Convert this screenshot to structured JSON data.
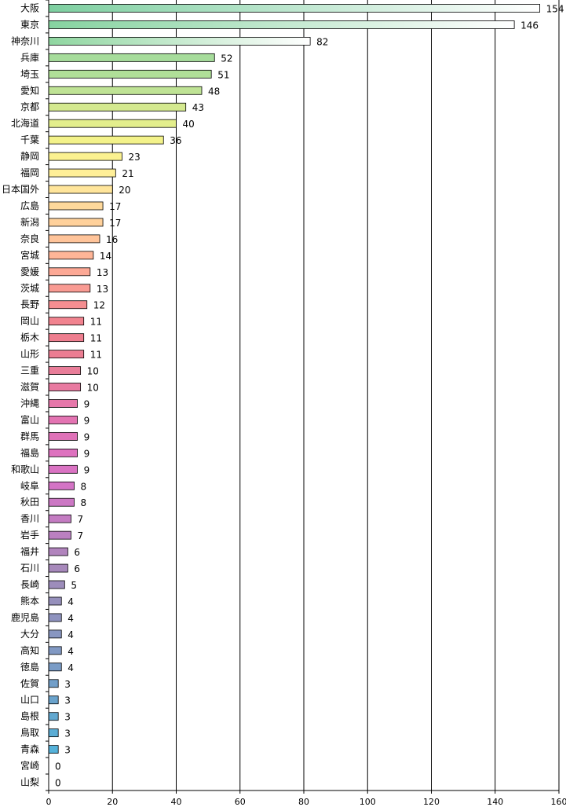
{
  "chart_data": {
    "type": "bar",
    "orientation": "horizontal",
    "title": "",
    "xlabel": "",
    "ylabel": "",
    "xlim": [
      0,
      160
    ],
    "x_ticks": [
      0,
      20,
      40,
      60,
      80,
      100,
      120,
      140,
      160
    ],
    "grid": "vertical",
    "legend": "none",
    "categories": [
      "大阪",
      "東京",
      "神奈川",
      "兵庫",
      "埼玉",
      "愛知",
      "京都",
      "北海道",
      "千葉",
      "静岡",
      "福岡",
      "日本国外",
      "広島",
      "新潟",
      "奈良",
      "宮城",
      "愛媛",
      "茨城",
      "長野",
      "岡山",
      "栃木",
      "山形",
      "三重",
      "滋賀",
      "沖縄",
      "富山",
      "群馬",
      "福島",
      "和歌山",
      "岐阜",
      "秋田",
      "香川",
      "岩手",
      "福井",
      "石川",
      "長崎",
      "熊本",
      "鹿児島",
      "大分",
      "高知",
      "徳島",
      "佐賀",
      "山口",
      "島根",
      "鳥取",
      "青森",
      "宮崎",
      "山梨"
    ],
    "values": [
      154,
      146,
      82,
      52,
      51,
      48,
      43,
      40,
      36,
      23,
      21,
      20,
      17,
      17,
      16,
      14,
      13,
      13,
      12,
      11,
      11,
      11,
      10,
      10,
      9,
      9,
      9,
      9,
      9,
      8,
      8,
      7,
      7,
      6,
      6,
      5,
      4,
      4,
      4,
      4,
      4,
      3,
      3,
      3,
      3,
      3,
      0,
      0
    ],
    "colors": [
      "#7dcfa0",
      "#86d3a0",
      "#8fd6a0",
      "#a6dc9b",
      "#b0df98",
      "#bfe395",
      "#d4e98f",
      "#e3ee8c",
      "#f3f28a",
      "#fbf190",
      "#ffef98",
      "#ffe59b",
      "#ffd99b",
      "#ffd19b",
      "#ffc49a",
      "#ffb597",
      "#fca895",
      "#f99b93",
      "#f58e91",
      "#f1838f",
      "#ee7e8f",
      "#eb7d92",
      "#e97d99",
      "#e87aa0",
      "#e677aa",
      "#e374b2",
      "#e072b8",
      "#de72bf",
      "#da73c3",
      "#d474c5",
      "#cc78c4",
      "#c47cc2",
      "#ba80c0",
      "#b184bd",
      "#a789bb",
      "#9d8dbb",
      "#9690bc",
      "#8f93bf",
      "#8896c1",
      "#8199c3",
      "#7a9cc6",
      "#729fc9",
      "#6aa3cc",
      "#62a8d0",
      "#5badd5",
      "#55b2da",
      "#50b7de",
      "#4bbce2"
    ]
  }
}
